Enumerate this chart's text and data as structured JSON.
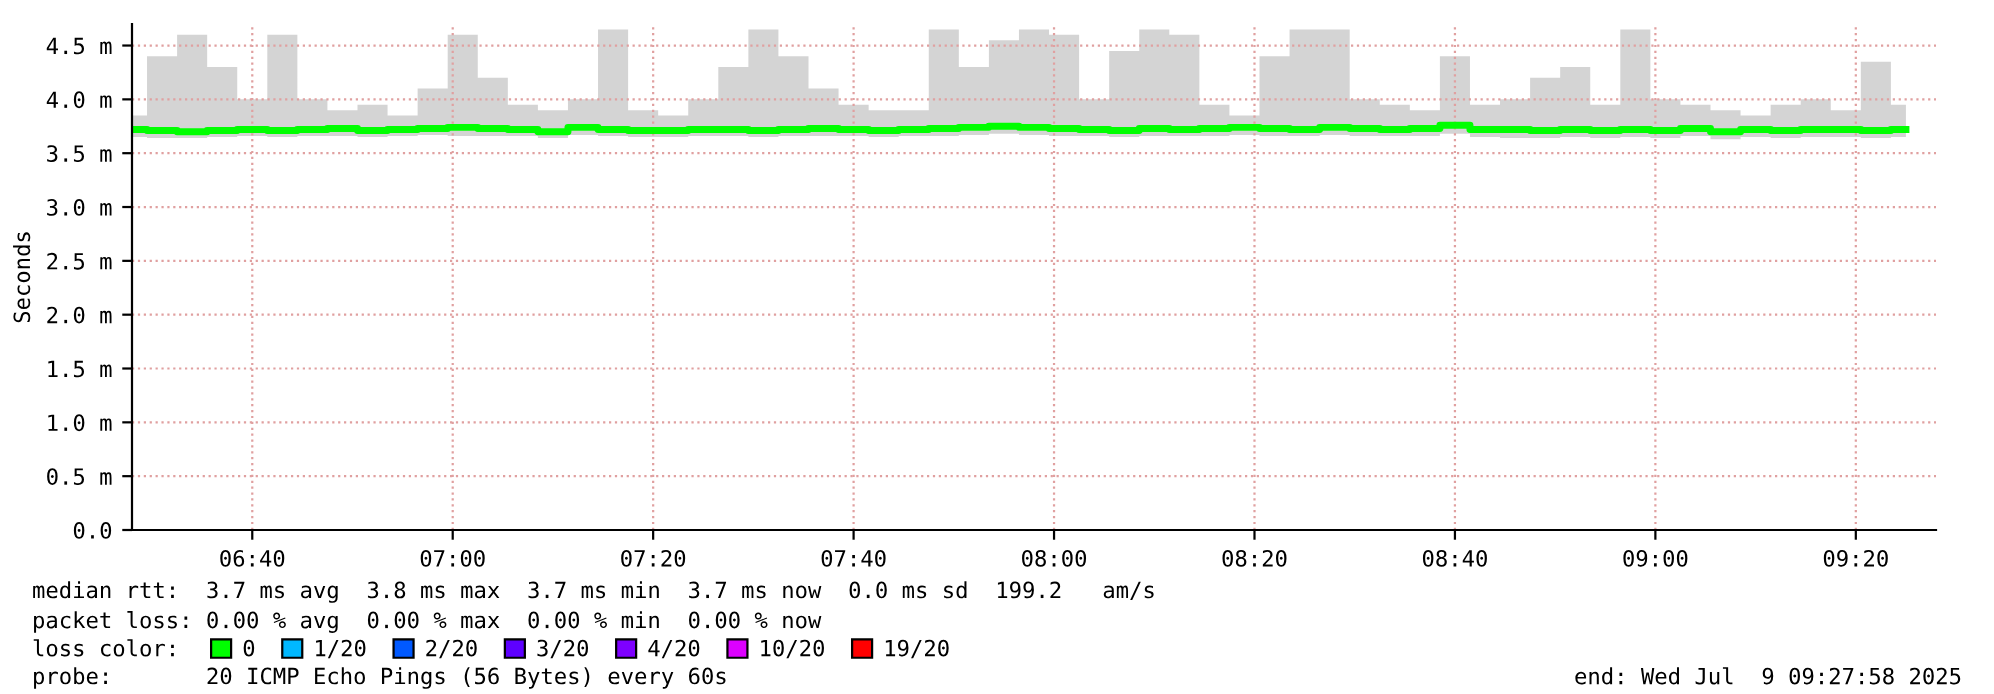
{
  "chart_data": {
    "type": "line",
    "ylabel": "Seconds",
    "x": [
      "2025-07-09T06:28",
      "2025-07-09T06:31",
      "2025-07-09T06:34",
      "2025-07-09T06:37",
      "2025-07-09T06:40",
      "2025-07-09T06:43",
      "2025-07-09T06:46",
      "2025-07-09T06:49",
      "2025-07-09T06:52",
      "2025-07-09T06:55",
      "2025-07-09T06:58",
      "2025-07-09T07:01",
      "2025-07-09T07:04",
      "2025-07-09T07:07",
      "2025-07-09T07:10",
      "2025-07-09T07:13",
      "2025-07-09T07:16",
      "2025-07-09T07:19",
      "2025-07-09T07:22",
      "2025-07-09T07:25",
      "2025-07-09T07:28",
      "2025-07-09T07:31",
      "2025-07-09T07:34",
      "2025-07-09T07:37",
      "2025-07-09T07:40",
      "2025-07-09T07:43",
      "2025-07-09T07:46",
      "2025-07-09T07:49",
      "2025-07-09T07:52",
      "2025-07-09T07:55",
      "2025-07-09T07:58",
      "2025-07-09T08:01",
      "2025-07-09T08:04",
      "2025-07-09T08:07",
      "2025-07-09T08:10",
      "2025-07-09T08:13",
      "2025-07-09T08:16",
      "2025-07-09T08:19",
      "2025-07-09T08:22",
      "2025-07-09T08:25",
      "2025-07-09T08:28",
      "2025-07-09T08:31",
      "2025-07-09T08:34",
      "2025-07-09T08:37",
      "2025-07-09T08:40",
      "2025-07-09T08:43",
      "2025-07-09T08:46",
      "2025-07-09T08:49",
      "2025-07-09T08:52",
      "2025-07-09T08:55",
      "2025-07-09T08:58",
      "2025-07-09T09:01",
      "2025-07-09T09:04",
      "2025-07-09T09:07",
      "2025-07-09T09:10",
      "2025-07-09T09:13",
      "2025-07-09T09:16",
      "2025-07-09T09:19",
      "2025-07-09T09:22",
      "2025-07-09T09:25"
    ],
    "series": [
      {
        "name": "0",
        "color": "#00ff00",
        "values": [
          3.72,
          3.71,
          3.7,
          3.71,
          3.72,
          3.71,
          3.72,
          3.73,
          3.71,
          3.72,
          3.73,
          3.74,
          3.73,
          3.72,
          3.7,
          3.74,
          3.72,
          3.71,
          3.71,
          3.72,
          3.72,
          3.71,
          3.72,
          3.73,
          3.72,
          3.71,
          3.72,
          3.73,
          3.74,
          3.75,
          3.74,
          3.73,
          3.72,
          3.71,
          3.73,
          3.72,
          3.73,
          3.74,
          3.73,
          3.72,
          3.74,
          3.73,
          3.72,
          3.73,
          3.76,
          3.72,
          3.72,
          3.71,
          3.72,
          3.71,
          3.72,
          3.71,
          3.73,
          3.7,
          3.72,
          3.71,
          3.72,
          3.72,
          3.71,
          3.72
        ],
        "lower": [
          3.65,
          3.64,
          3.64,
          3.65,
          3.66,
          3.65,
          3.66,
          3.66,
          3.65,
          3.66,
          3.67,
          3.66,
          3.66,
          3.66,
          3.64,
          3.67,
          3.66,
          3.65,
          3.65,
          3.66,
          3.66,
          3.65,
          3.66,
          3.66,
          3.66,
          3.65,
          3.66,
          3.66,
          3.67,
          3.68,
          3.67,
          3.66,
          3.66,
          3.65,
          3.66,
          3.66,
          3.66,
          3.67,
          3.66,
          3.66,
          3.67,
          3.66,
          3.66,
          3.66,
          3.68,
          3.65,
          3.64,
          3.64,
          3.65,
          3.64,
          3.65,
          3.64,
          3.66,
          3.63,
          3.65,
          3.64,
          3.65,
          3.65,
          3.64,
          3.65
        ],
        "upper": [
          3.85,
          4.4,
          4.6,
          4.3,
          4.0,
          4.6,
          4.0,
          3.9,
          3.95,
          3.85,
          4.1,
          4.6,
          4.2,
          3.95,
          3.9,
          4.0,
          4.65,
          3.9,
          3.85,
          4.0,
          4.3,
          4.65,
          4.4,
          4.1,
          3.95,
          3.9,
          3.9,
          4.65,
          4.3,
          4.55,
          4.65,
          4.6,
          4.0,
          4.45,
          4.65,
          4.6,
          3.95,
          3.85,
          4.4,
          4.65,
          4.65,
          4.0,
          3.95,
          3.9,
          4.4,
          3.95,
          4.0,
          4.2,
          4.3,
          3.95,
          4.65,
          4.0,
          3.95,
          3.9,
          3.85,
          3.95,
          4.0,
          3.9,
          4.35,
          3.95
        ]
      },
      {
        "name": "1/20",
        "color": "#00b8ff",
        "values": [
          null,
          null,
          null,
          null,
          null,
          null,
          null,
          null,
          null,
          null,
          null,
          null,
          null,
          null,
          null,
          null,
          null,
          null,
          null,
          null,
          null,
          null,
          null,
          null,
          null,
          null,
          null,
          null,
          null,
          null,
          null,
          null,
          null,
          null,
          null,
          null,
          null,
          null,
          null,
          null,
          null,
          null,
          null,
          null,
          null,
          null,
          null,
          null,
          null,
          null,
          null,
          null,
          null,
          null,
          null,
          null,
          null,
          null,
          null,
          null
        ]
      },
      {
        "name": "2/20",
        "color": "#0059ff",
        "values": [
          null,
          null,
          null,
          null,
          null,
          null,
          null,
          null,
          null,
          null,
          null,
          null,
          null,
          null,
          null,
          null,
          null,
          null,
          null,
          null,
          null,
          null,
          null,
          null,
          null,
          null,
          null,
          null,
          null,
          null,
          null,
          null,
          null,
          null,
          null,
          null,
          null,
          null,
          null,
          null,
          null,
          null,
          null,
          null,
          null,
          null,
          null,
          null,
          null,
          null,
          null,
          null,
          null,
          null,
          null,
          null,
          null,
          null,
          null,
          null
        ]
      },
      {
        "name": "3/20",
        "color": "#5e00ff",
        "values": [
          null,
          null,
          null,
          null,
          null,
          null,
          null,
          null,
          null,
          null,
          null,
          null,
          null,
          null,
          null,
          null,
          null,
          null,
          null,
          null,
          null,
          null,
          null,
          null,
          null,
          null,
          null,
          null,
          null,
          null,
          null,
          null,
          null,
          null,
          null,
          null,
          null,
          null,
          null,
          null,
          null,
          null,
          null,
          null,
          null,
          null,
          null,
          null,
          null,
          null,
          null,
          null,
          null,
          null,
          null,
          null,
          null,
          null,
          null,
          null
        ]
      },
      {
        "name": "4/20",
        "color": "#7e00ff",
        "values": [
          null,
          null,
          null,
          null,
          null,
          null,
          null,
          null,
          null,
          null,
          null,
          null,
          null,
          null,
          null,
          null,
          null,
          null,
          null,
          null,
          null,
          null,
          null,
          null,
          null,
          null,
          null,
          null,
          null,
          null,
          null,
          null,
          null,
          null,
          null,
          null,
          null,
          null,
          null,
          null,
          null,
          null,
          null,
          null,
          null,
          null,
          null,
          null,
          null,
          null,
          null,
          null,
          null,
          null,
          null,
          null,
          null,
          null,
          null,
          null
        ]
      },
      {
        "name": "10/20",
        "color": "#dd00ff",
        "values": [
          null,
          null,
          null,
          null,
          null,
          null,
          null,
          null,
          null,
          null,
          null,
          null,
          null,
          null,
          null,
          null,
          null,
          null,
          null,
          null,
          null,
          null,
          null,
          null,
          null,
          null,
          null,
          null,
          null,
          null,
          null,
          null,
          null,
          null,
          null,
          null,
          null,
          null,
          null,
          null,
          null,
          null,
          null,
          null,
          null,
          null,
          null,
          null,
          null,
          null,
          null,
          null,
          null,
          null,
          null,
          null,
          null,
          null,
          null,
          null
        ]
      },
      {
        "name": "19/20",
        "color": "#ff0000",
        "values": [
          null,
          null,
          null,
          null,
          null,
          null,
          null,
          null,
          null,
          null,
          null,
          null,
          null,
          null,
          null,
          null,
          null,
          null,
          null,
          null,
          null,
          null,
          null,
          null,
          null,
          null,
          null,
          null,
          null,
          null,
          null,
          null,
          null,
          null,
          null,
          null,
          null,
          null,
          null,
          null,
          null,
          null,
          null,
          null,
          null,
          null,
          null,
          null,
          null,
          null,
          null,
          null,
          null,
          null,
          null,
          null,
          null,
          null,
          null,
          null
        ]
      }
    ],
    "xlim": [
      "2025-07-09T06:28",
      "2025-07-09T09:28"
    ],
    "xticks": [
      {
        "value": "2025-07-09T06:40",
        "label": "06:40"
      },
      {
        "value": "2025-07-09T07:00",
        "label": "07:00"
      },
      {
        "value": "2025-07-09T07:20",
        "label": "07:20"
      },
      {
        "value": "2025-07-09T07:40",
        "label": "07:40"
      },
      {
        "value": "2025-07-09T08:00",
        "label": "08:00"
      },
      {
        "value": "2025-07-09T08:20",
        "label": "08:20"
      },
      {
        "value": "2025-07-09T08:40",
        "label": "08:40"
      },
      {
        "value": "2025-07-09T09:00",
        "label": "09:00"
      },
      {
        "value": "2025-07-09T09:20",
        "label": "09:20"
      }
    ],
    "ylim": [
      0,
      4.7
    ],
    "yticks": [
      {
        "value": 0,
        "label": "0.0"
      },
      {
        "value": 0.5,
        "label": "0.5 m"
      },
      {
        "value": 1.0,
        "label": "1.0 m"
      },
      {
        "value": 1.5,
        "label": "1.5 m"
      },
      {
        "value": 2.0,
        "label": "2.0 m"
      },
      {
        "value": 2.5,
        "label": "2.5 m"
      },
      {
        "value": 3.0,
        "label": "3.0 m"
      },
      {
        "value": 3.5,
        "label": "3.5 m"
      },
      {
        "value": 4.0,
        "label": "4.0 m"
      },
      {
        "value": 4.5,
        "label": "4.5 m"
      }
    ],
    "grid": true,
    "legend": "bottom",
    "line_style": "solid",
    "annotations": [
      "median rtt:  3.7 ms avg  3.8 ms max  3.7 ms min  3.7 ms now  0.0 ms sd  199.2   am/s",
      "packet loss: 0.00 % avg  0.00 % max  0.00 % min  0.00 % now",
      "loss color:",
      "probe:       20 ICMP Echo Pings (56 Bytes) every 60s",
      "end: Wed Jul  9 09:27:58 2025"
    ]
  }
}
